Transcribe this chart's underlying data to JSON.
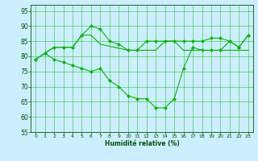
{
  "xlabel": "Humidité relative (%)",
  "bg_color": "#cceeff",
  "grid_color": "#00bb00",
  "line_color": "#00bb00",
  "xlim": [
    -0.5,
    23.5
  ],
  "ylim": [
    55,
    97
  ],
  "yticks": [
    55,
    60,
    65,
    70,
    75,
    80,
    85,
    90,
    95
  ],
  "xticks": [
    0,
    1,
    2,
    3,
    4,
    5,
    6,
    7,
    8,
    9,
    10,
    11,
    12,
    13,
    14,
    15,
    16,
    17,
    18,
    19,
    20,
    21,
    22,
    23
  ],
  "line1_x": [
    0,
    1,
    2,
    3,
    4,
    5,
    6,
    7,
    8,
    9,
    10,
    11,
    12,
    13,
    14,
    15,
    16,
    17,
    18,
    19,
    20,
    21,
    22,
    23
  ],
  "line1_y": [
    79,
    81,
    83,
    83,
    83,
    87,
    90,
    89,
    85,
    84,
    82,
    82,
    85,
    85,
    85,
    85,
    85,
    85,
    85,
    86,
    86,
    85,
    83,
    87
  ],
  "line2_x": [
    0,
    2,
    3,
    4,
    5,
    6,
    7,
    10,
    11,
    12,
    13,
    14,
    15,
    16,
    17,
    18,
    19,
    20,
    21,
    22,
    23
  ],
  "line2_y": [
    79,
    83,
    83,
    83,
    87,
    87,
    84,
    82,
    82,
    82,
    82,
    85,
    85,
    82,
    82,
    82,
    82,
    82,
    82,
    82,
    82
  ],
  "line3_x": [
    0,
    1,
    2,
    3,
    4,
    5,
    6,
    7,
    8,
    9,
    10,
    11,
    12,
    13,
    14,
    15,
    16,
    17,
    18,
    19,
    20,
    21,
    22,
    23
  ],
  "line3_y": [
    79,
    81,
    79,
    78,
    77,
    76,
    75,
    76,
    72,
    70,
    67,
    66,
    66,
    63,
    63,
    66,
    76,
    83,
    82,
    82,
    82,
    85,
    83,
    87
  ],
  "line1_marker_x": [
    0,
    1,
    2,
    3,
    4,
    5,
    6,
    7,
    8,
    10,
    11,
    13,
    14,
    15,
    16,
    17,
    19,
    20,
    21,
    22,
    23
  ],
  "line1_marker_y": [
    79,
    81,
    83,
    83,
    83,
    87,
    90,
    89,
    85,
    82,
    82,
    85,
    85,
    85,
    85,
    85,
    86,
    86,
    85,
    83,
    87
  ],
  "line3_marker_x": [
    0,
    1,
    2,
    3,
    4,
    5,
    6,
    7,
    8,
    9,
    10,
    11,
    12,
    13,
    14,
    15,
    16,
    17,
    21,
    22,
    23
  ],
  "line3_marker_y": [
    79,
    81,
    79,
    78,
    77,
    76,
    75,
    76,
    72,
    70,
    67,
    66,
    66,
    63,
    63,
    66,
    76,
    83,
    85,
    83,
    87
  ]
}
